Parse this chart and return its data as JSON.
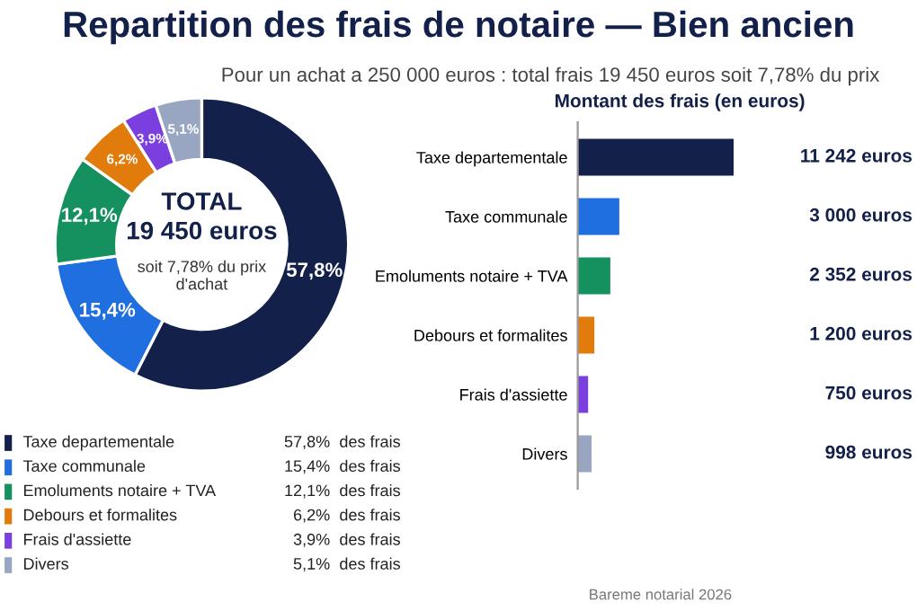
{
  "chart_data": [
    {
      "type": "donut",
      "title": "Repartition des frais de notaire — Bien ancien",
      "subtitle": "Pour un achat a 250 000 euros : total frais 19 450 euros soit 7,78% du prix",
      "categories": [
        "Taxe departementale",
        "Taxe communale",
        "Emoluments notaire + TVA",
        "Debours et formalites",
        "Frais d'assiette",
        "Divers"
      ],
      "values": [
        57.8,
        15.4,
        12.1,
        6.2,
        3.9,
        5.1
      ],
      "colors": [
        "#13214a",
        "#1f6fe0",
        "#14915f",
        "#e07b0c",
        "#7b3fe0",
        "#98a6c2"
      ],
      "value_labels": [
        "57,8%",
        "15,4%",
        "12,1%",
        "6,2%",
        "3,9%",
        "5,1%"
      ],
      "legend": "bottom",
      "annotations": [
        "TOTAL",
        "19 450 euros",
        "soit 7,78% du prix d'achat",
        "des frais"
      ]
    },
    {
      "type": "bar",
      "orientation": "horizontal",
      "title": "Montant des frais (en euros)",
      "categories": [
        "Taxe departementale",
        "Taxe communale",
        "Emoluments notaire + TVA",
        "Debours et formalites",
        "Frais d'assiette",
        "Divers"
      ],
      "values": [
        11242,
        3000,
        2352,
        1200,
        750,
        998
      ],
      "colors": [
        "#13214a",
        "#1f6fe0",
        "#14915f",
        "#e07b0c",
        "#7b3fe0",
        "#98a6c2"
      ],
      "value_labels": [
        "11 242 euros",
        "3 000 euros",
        "2 352 euros",
        "1 200 euros",
        "750 euros",
        "998 euros"
      ],
      "annotations": [
        "Bareme notarial 2026"
      ]
    }
  ]
}
